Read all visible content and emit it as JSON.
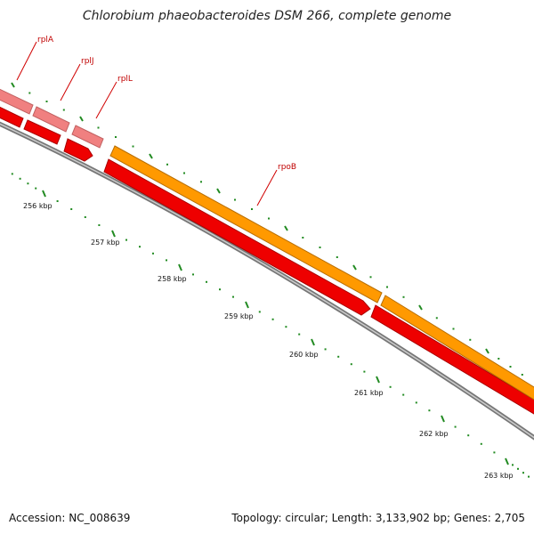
{
  "title": "Chlorobium phaeobacteroides DSM 266, complete genome",
  "footer": {
    "accession": "Accession: NC_008639",
    "summary": "Topology: circular; Length: 3,133,902 bp; Genes: 2,705"
  },
  "ticks": [
    {
      "label": "256 kbp"
    },
    {
      "label": "257 kbp"
    },
    {
      "label": "258 kbp"
    },
    {
      "label": "259 kbp"
    },
    {
      "label": "260 kbp"
    },
    {
      "label": "261 kbp"
    },
    {
      "label": "262 kbp"
    },
    {
      "label": "263 kbp"
    }
  ],
  "genes": [
    {
      "name": "rplA"
    },
    {
      "name": "rplJ"
    },
    {
      "name": "rplL"
    },
    {
      "name": "rpoB"
    }
  ],
  "colors": {
    "gene_light": "#f08080",
    "gene_red": "#ee0000",
    "gene_orange": "#ff9900",
    "backbone": "#777777",
    "tick": "#228b22"
  }
}
